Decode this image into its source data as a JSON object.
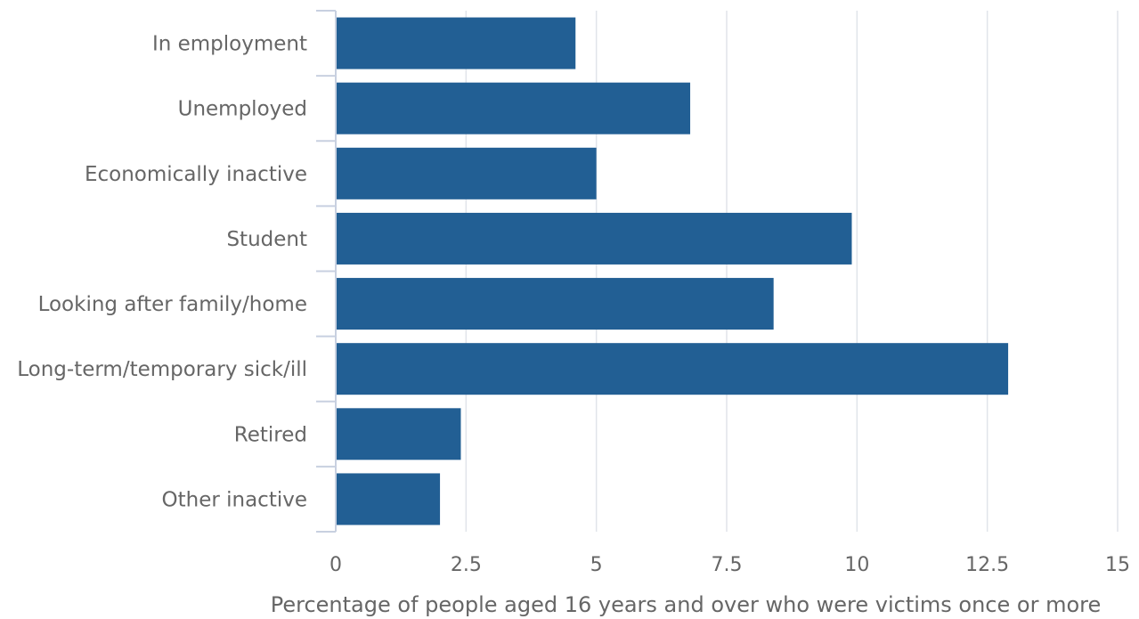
{
  "chart_data": {
    "type": "bar",
    "orientation": "horizontal",
    "categories": [
      "In employment",
      "Unemployed",
      "Economically inactive",
      "Student",
      "Looking after family/home",
      "Long-term/temporary sick/ill",
      "Retired",
      "Other inactive"
    ],
    "values": [
      4.6,
      6.8,
      5.0,
      9.9,
      8.4,
      12.9,
      2.4,
      2.0
    ],
    "xlabel": "Percentage of people aged 16 years and over who were victims once or more",
    "ylabel": "",
    "xlim": [
      0,
      15
    ],
    "x_ticks": [
      0,
      2.5,
      5,
      7.5,
      10,
      12.5,
      15
    ],
    "x_tick_labels": [
      "0",
      "2.5",
      "5",
      "7.5",
      "10",
      "12.5",
      "15"
    ],
    "grid": "vertical",
    "bar_color": "#225f94",
    "legend": "none"
  }
}
